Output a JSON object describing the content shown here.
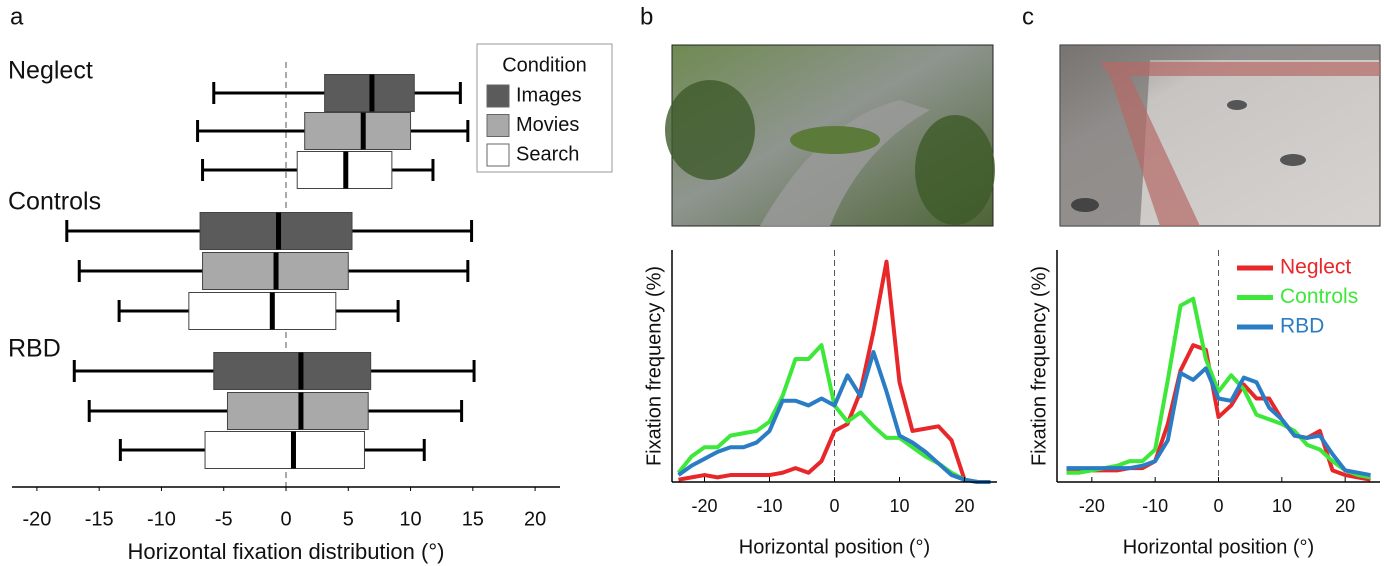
{
  "chart_data": [
    {
      "type": "boxplot",
      "panel_label": "a",
      "xlabel": "Horizontal fixation distribution (°)",
      "categories": [
        "Neglect",
        "Controls",
        "RBD"
      ],
      "legend_title": "Condition",
      "series": [
        {
          "name": "Images",
          "color": "#5b5b5b",
          "whisker_low": [
            -5.8,
            -17.6,
            -17.0
          ],
          "q1": [
            3.1,
            -6.9,
            -5.8
          ],
          "median": [
            6.9,
            -0.6,
            1.2
          ],
          "q3": [
            10.3,
            5.3,
            6.8
          ],
          "whisker_high": [
            14.0,
            14.9,
            15.1
          ]
        },
        {
          "name": "Movies",
          "color": "#a9a9a9",
          "whisker_low": [
            -7.1,
            -16.6,
            -15.8
          ],
          "q1": [
            1.5,
            -6.7,
            -4.7
          ],
          "median": [
            6.2,
            -0.8,
            1.2
          ],
          "q3": [
            10.0,
            5.0,
            6.6
          ],
          "whisker_high": [
            14.6,
            14.6,
            14.1
          ]
        },
        {
          "name": "Search",
          "color": "#ffffff",
          "whisker_low": [
            -6.7,
            -13.4,
            -13.3
          ],
          "q1": [
            0.9,
            -7.8,
            -6.5
          ],
          "median": [
            4.8,
            -1.1,
            0.6
          ],
          "q3": [
            8.5,
            4.0,
            6.3
          ],
          "whisker_high": [
            11.8,
            9.0,
            11.1
          ]
        }
      ],
      "xlim": [
        -22,
        22
      ],
      "xticks": [
        -20,
        -15,
        -10,
        -5,
        0,
        5,
        10,
        15,
        20
      ],
      "reference_x": 0
    },
    {
      "type": "line",
      "panel_label": "b",
      "xlabel": "Horizontal position (°)",
      "ylabel": "Fixation frequency (%)",
      "x": [
        -24,
        -22,
        -20,
        -18,
        -16,
        -14,
        -12,
        -10,
        -8,
        -6,
        -4,
        -2,
        0,
        2,
        4,
        6,
        8,
        10,
        12,
        14,
        16,
        18,
        20,
        22,
        24
      ],
      "series": [
        {
          "color": "#e8272a",
          "values": [
            0.1,
            0.2,
            0.3,
            0.2,
            0.3,
            0.3,
            0.3,
            0.3,
            0.4,
            0.6,
            0.4,
            0.9,
            2.2,
            2.5,
            3.9,
            6.5,
            9.5,
            4.3,
            2.2,
            2.3,
            2.4,
            1.8,
            0.1,
            0,
            0
          ]
        },
        {
          "color": "#3ee83a",
          "values": [
            0.4,
            1.1,
            1.5,
            1.5,
            2.0,
            2.1,
            2.2,
            2.6,
            3.7,
            5.3,
            5.3,
            5.9,
            3.3,
            2.6,
            3.0,
            2.4,
            1.9,
            1.9,
            1.5,
            1.1,
            0.8,
            0.4,
            0.1,
            0,
            0
          ]
        },
        {
          "color": "#2a7cc4",
          "values": [
            0.3,
            0.7,
            1.0,
            1.3,
            1.5,
            1.5,
            1.7,
            2.2,
            3.5,
            3.5,
            3.3,
            3.6,
            3.3,
            4.6,
            3.7,
            5.6,
            3.9,
            2.0,
            1.7,
            1.3,
            0.8,
            0.3,
            0.1,
            0,
            0
          ]
        }
      ],
      "xlim": [
        -25,
        25
      ],
      "ylim": [
        0,
        10
      ],
      "xticks": [
        -20,
        -10,
        0,
        10,
        20
      ],
      "reference_x": 0
    },
    {
      "type": "line",
      "panel_label": "c",
      "xlabel": "Horizontal position (°)",
      "ylabel": "Fixation frequency (%)",
      "x": [
        -24,
        -22,
        -20,
        -18,
        -16,
        -14,
        -12,
        -10,
        -8,
        -6,
        -4,
        -2,
        0,
        2,
        4,
        6,
        8,
        10,
        12,
        14,
        16,
        18,
        20,
        22,
        24
      ],
      "series": [
        {
          "name": "Neglect",
          "color": "#e8272a",
          "values": [
            0.5,
            0.5,
            0.5,
            0.5,
            0.5,
            0.6,
            0.6,
            0.9,
            2.5,
            4.8,
            5.9,
            5.7,
            2.8,
            3.3,
            4.2,
            3.6,
            3.6,
            2.7,
            2.0,
            1.9,
            2.2,
            0.5,
            0.3,
            0.2,
            0.1
          ]
        },
        {
          "name": "Controls",
          "color": "#3ee83a",
          "values": [
            0.4,
            0.4,
            0.5,
            0.6,
            0.7,
            0.9,
            0.9,
            1.4,
            4.4,
            7.6,
            7.9,
            5.3,
            3.9,
            4.6,
            4.0,
            2.9,
            2.7,
            2.5,
            2.2,
            1.6,
            1.4,
            0.9,
            0.5,
            0.3,
            0.2
          ]
        },
        {
          "name": "RBD",
          "color": "#2a7cc4",
          "values": [
            0.6,
            0.6,
            0.6,
            0.6,
            0.6,
            0.6,
            0.7,
            0.9,
            1.8,
            4.7,
            4.4,
            4.9,
            3.6,
            3.5,
            4.5,
            4.3,
            3.2,
            2.7,
            2.0,
            1.9,
            2.0,
            1.2,
            0.5,
            0.4,
            0.3
          ]
        }
      ],
      "xlim": [
        -25.5,
        25.5
      ],
      "ylim": [
        0,
        10
      ],
      "xticks": [
        -20,
        -10,
        0,
        10,
        20
      ],
      "reference_x": 0,
      "legend": "upper right"
    }
  ]
}
